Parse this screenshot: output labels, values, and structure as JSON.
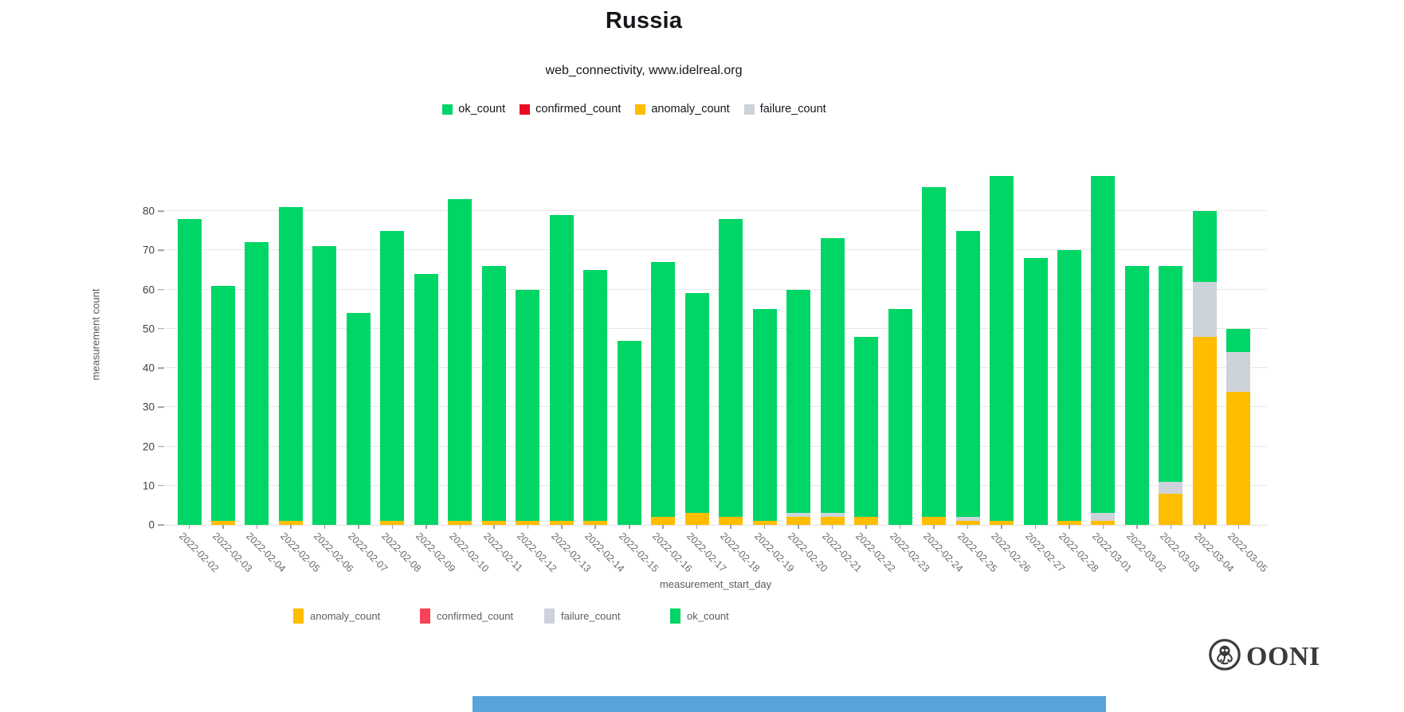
{
  "header": {
    "title": "Russia",
    "subtitle": "web_connectivity, www.idelreal.org"
  },
  "legend_top": {
    "items": [
      {
        "label": "ok_count",
        "color": "#00d665"
      },
      {
        "label": "confirmed_count",
        "color": "#eb0c23"
      },
      {
        "label": "anomaly_count",
        "color": "#ffbd00"
      },
      {
        "label": "failure_count",
        "color": "#cdd3da"
      }
    ]
  },
  "legend_bottom": {
    "items": [
      {
        "label": "anomaly_count",
        "color": "#ffbd00"
      },
      {
        "label": "confirmed_count",
        "color": "#f64359"
      },
      {
        "label": "failure_count",
        "color": "#cdd3da"
      },
      {
        "label": "ok_count",
        "color": "#00d665"
      }
    ]
  },
  "chart_data": {
    "type": "bar",
    "stacked": true,
    "title": "Russia",
    "subtitle": "web_connectivity, www.idelreal.org",
    "xlabel": "measurement_start_day",
    "ylabel": "measurement count",
    "ylim": [
      0,
      89
    ],
    "yticks": [
      0,
      10,
      20,
      30,
      40,
      50,
      60,
      70,
      80
    ],
    "grid": true,
    "legend_position": "top-center and bottom",
    "categories": [
      "2022-02-02",
      "2022-02-03",
      "2022-02-04",
      "2022-02-05",
      "2022-02-06",
      "2022-02-07",
      "2022-02-08",
      "2022-02-09",
      "2022-02-10",
      "2022-02-11",
      "2022-02-12",
      "2022-02-13",
      "2022-02-14",
      "2022-02-15",
      "2022-02-16",
      "2022-02-17",
      "2022-02-18",
      "2022-02-19",
      "2022-02-20",
      "2022-02-21",
      "2022-02-22",
      "2022-02-23",
      "2022-02-24",
      "2022-02-25",
      "2022-02-26",
      "2022-02-27",
      "2022-02-28",
      "2022-03-01",
      "2022-03-02",
      "2022-03-03",
      "2022-03-04",
      "2022-03-05"
    ],
    "series": [
      {
        "name": "anomaly_count",
        "color": "#ffbd00",
        "values": [
          0,
          1,
          0,
          1,
          0,
          0,
          1,
          0,
          1,
          1,
          1,
          1,
          1,
          0,
          2,
          3,
          2,
          1,
          2,
          2,
          2,
          0,
          2,
          1,
          1,
          0,
          1,
          1,
          0,
          8,
          48,
          34
        ]
      },
      {
        "name": "confirmed_count",
        "color": "#eb0c23",
        "values": [
          0,
          0,
          0,
          0,
          0,
          0,
          0,
          0,
          0,
          0,
          0,
          0,
          0,
          0,
          0,
          0,
          0,
          0,
          0,
          0,
          0,
          0,
          0,
          0,
          0,
          0,
          0,
          0,
          0,
          0,
          0,
          0
        ]
      },
      {
        "name": "failure_count",
        "color": "#cdd3da",
        "values": [
          0,
          0,
          0,
          0,
          0,
          0,
          0,
          0,
          0,
          0,
          0,
          0,
          0,
          0,
          0,
          0,
          0,
          0,
          1,
          1,
          0,
          0,
          0,
          1,
          0,
          0,
          0,
          2,
          0,
          3,
          14,
          10
        ]
      },
      {
        "name": "ok_count",
        "color": "#00d665",
        "values": [
          78,
          60,
          72,
          80,
          71,
          54,
          74,
          64,
          82,
          65,
          59,
          78,
          64,
          47,
          65,
          56,
          76,
          54,
          57,
          70,
          46,
          55,
          84,
          73,
          88,
          68,
          69,
          86,
          66,
          55,
          18,
          6
        ]
      }
    ],
    "totals": [
      78,
      61,
      72,
      81,
      71,
      54,
      75,
      64,
      83,
      66,
      60,
      79,
      65,
      47,
      67,
      59,
      78,
      55,
      60,
      73,
      48,
      55,
      86,
      75,
      89,
      68,
      70,
      89,
      66,
      66,
      80,
      50
    ]
  },
  "branding": {
    "logo_text": "OONI"
  },
  "footer": {
    "bar_color": "#57a4dd"
  }
}
